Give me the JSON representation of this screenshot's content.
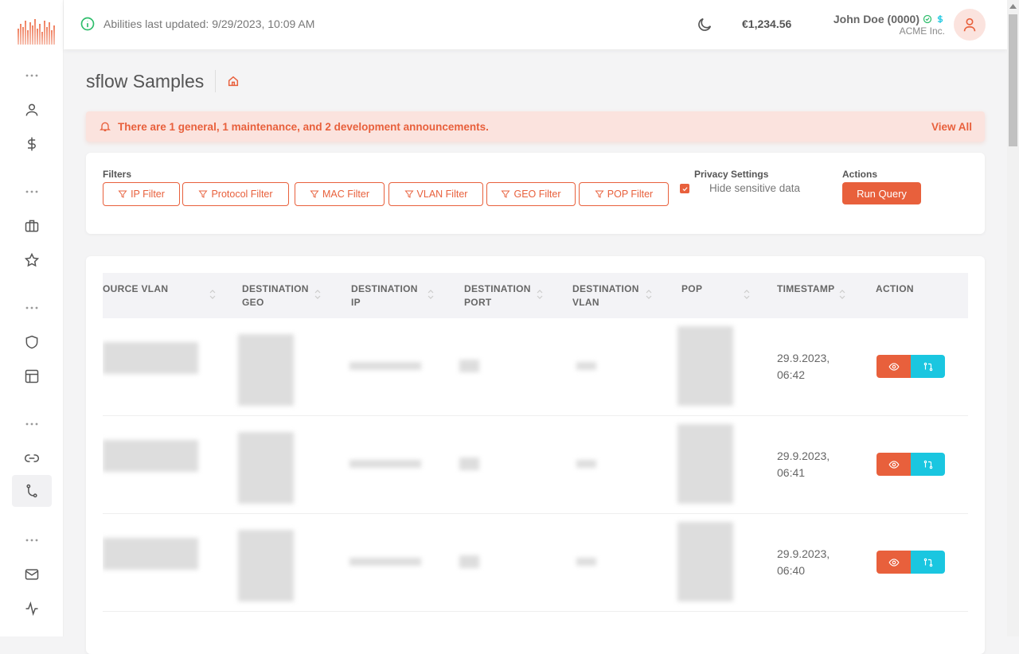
{
  "header": {
    "info_text": "Abilities last updated: 9/29/2023, 10:09 AM",
    "balance": "€1,234.56",
    "user_name": "John Doe (0000)",
    "user_org": "ACME Inc."
  },
  "page": {
    "title": "sflow Samples"
  },
  "announcement": {
    "text": "There are 1 general, 1 maintenance, and 2 development announcements.",
    "view_all": "View All"
  },
  "filters": {
    "label": "Filters",
    "buttons": [
      "IP Filter",
      "Protocol Filter",
      "MAC Filter",
      "VLAN Filter",
      "GEO Filter",
      "POP Filter"
    ]
  },
  "privacy": {
    "label": "Privacy Settings",
    "checkbox_label": "Hide sensitive data",
    "checked": true
  },
  "actions": {
    "label": "Actions",
    "run_query": "Run Query"
  },
  "table": {
    "columns": [
      [
        "OURCE VLAN",
        ""
      ],
      [
        "DESTINATION",
        "GEO"
      ],
      [
        "DESTINATION",
        "IP"
      ],
      [
        "DESTINATION",
        "PORT"
      ],
      [
        "DESTINATION",
        "VLAN"
      ],
      [
        "POP",
        ""
      ],
      [
        "TIMESTAMP",
        ""
      ],
      [
        "ACTION",
        ""
      ]
    ],
    "rows": [
      {
        "timestamp_date": "29.9.2023,",
        "timestamp_time": "06:42"
      },
      {
        "timestamp_date": "29.9.2023,",
        "timestamp_time": "06:41"
      },
      {
        "timestamp_date": "29.9.2023,",
        "timestamp_time": "06:40"
      }
    ]
  },
  "colors": {
    "accent": "#e8603c",
    "secondary": "#1ac6e0",
    "success": "#2ebd6b"
  }
}
